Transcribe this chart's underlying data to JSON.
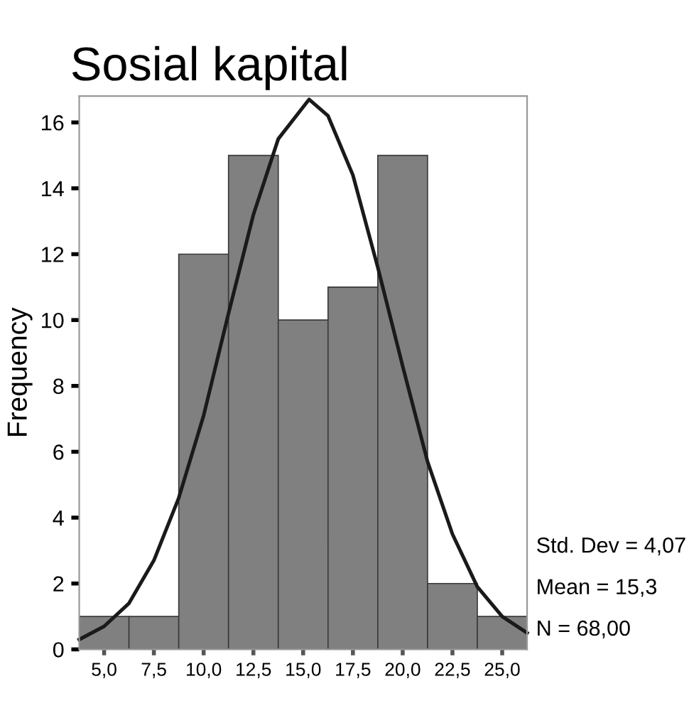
{
  "chart_data": {
    "type": "histogram",
    "title": "Sosial kapital",
    "ylabel": "Frequency",
    "bins": [
      3.75,
      6.25,
      8.75,
      11.25,
      13.75,
      16.25,
      18.75,
      21.25,
      23.75,
      26.25
    ],
    "values": [
      1,
      1,
      12,
      15,
      10,
      11,
      15,
      2,
      1
    ],
    "color": "#808080",
    "series": [
      {
        "type": "line",
        "color": "#1a1a1a",
        "x": [
          3.75,
          5,
          6.25,
          7.5,
          8.75,
          10,
          11.25,
          12.5,
          13.75,
          15.3,
          16.25,
          17.5,
          18.75,
          20,
          21.25,
          22.5,
          23.75,
          25,
          26.25
        ],
        "values": [
          0.3,
          0.7,
          1.4,
          2.7,
          4.6,
          7.1,
          10.2,
          13.2,
          15.5,
          16.7,
          16.2,
          14.4,
          11.6,
          8.6,
          5.7,
          3.5,
          1.9,
          1.0,
          0.5
        ]
      }
    ],
    "xlim": [
      3.75,
      26.25
    ],
    "xticks": [
      {
        "value": 5,
        "label": "5,0"
      },
      {
        "value": 7.5,
        "label": "7,5"
      },
      {
        "value": 10,
        "label": "10,0"
      },
      {
        "value": 12.5,
        "label": "12,5"
      },
      {
        "value": 15,
        "label": "15,0"
      },
      {
        "value": 17.5,
        "label": "17,5"
      },
      {
        "value": 20,
        "label": "20,0"
      },
      {
        "value": 22.5,
        "label": "22,5"
      },
      {
        "value": 25,
        "label": "25,0"
      }
    ],
    "ylim": [
      0,
      16.8
    ],
    "yticks": [
      0,
      2,
      4,
      6,
      8,
      10,
      12,
      14,
      16
    ],
    "grid": false,
    "annotations": [
      "Std. Dev = 4,07",
      "Mean = 15,3",
      "N = 68,00"
    ]
  }
}
